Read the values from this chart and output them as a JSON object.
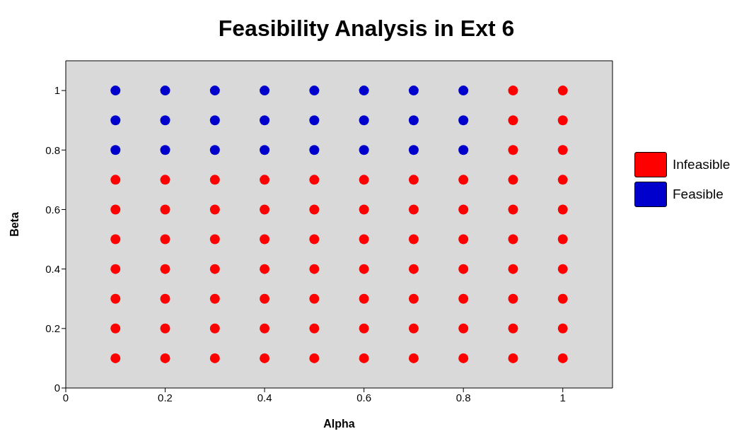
{
  "chart_data": {
    "type": "scatter",
    "title": "Feasibility Analysis in Ext 6",
    "xlabel": "Alpha",
    "ylabel": "Beta",
    "xlim": [
      0,
      1.1
    ],
    "xticks": [
      0,
      0.2,
      0.4,
      0.6,
      0.8,
      1
    ],
    "ylim": [
      0,
      1.1
    ],
    "yticks": [
      0,
      0.2,
      0.4,
      0.6,
      0.8,
      1
    ],
    "legend": "right",
    "marker": "circle",
    "series": [
      {
        "name": "Infeasible",
        "color": "#ff0000",
        "x": [
          0.1,
          0.1,
          0.1,
          0.1,
          0.1,
          0.1,
          0.1,
          0.2,
          0.2,
          0.2,
          0.2,
          0.2,
          0.2,
          0.2,
          0.3,
          0.3,
          0.3,
          0.3,
          0.3,
          0.3,
          0.3,
          0.4,
          0.4,
          0.4,
          0.4,
          0.4,
          0.4,
          0.4,
          0.5,
          0.5,
          0.5,
          0.5,
          0.5,
          0.5,
          0.5,
          0.6,
          0.6,
          0.6,
          0.6,
          0.6,
          0.6,
          0.6,
          0.7,
          0.7,
          0.7,
          0.7,
          0.7,
          0.7,
          0.7,
          0.8,
          0.8,
          0.8,
          0.8,
          0.8,
          0.8,
          0.8,
          0.9,
          0.9,
          0.9,
          0.9,
          0.9,
          0.9,
          0.9,
          0.9,
          0.9,
          0.9,
          1,
          1,
          1,
          1,
          1,
          1,
          1,
          1,
          1,
          1
        ],
        "values": [
          0.1,
          0.2,
          0.3,
          0.4,
          0.5,
          0.6,
          0.7,
          0.1,
          0.2,
          0.3,
          0.4,
          0.5,
          0.6,
          0.7,
          0.1,
          0.2,
          0.3,
          0.4,
          0.5,
          0.6,
          0.7,
          0.1,
          0.2,
          0.3,
          0.4,
          0.5,
          0.6,
          0.7,
          0.1,
          0.2,
          0.3,
          0.4,
          0.5,
          0.6,
          0.7,
          0.1,
          0.2,
          0.3,
          0.4,
          0.5,
          0.6,
          0.7,
          0.1,
          0.2,
          0.3,
          0.4,
          0.5,
          0.6,
          0.7,
          0.1,
          0.2,
          0.3,
          0.4,
          0.5,
          0.6,
          0.7,
          0.1,
          0.2,
          0.3,
          0.4,
          0.5,
          0.6,
          0.7,
          0.8,
          0.9,
          1,
          0.1,
          0.2,
          0.3,
          0.4,
          0.5,
          0.6,
          0.7,
          0.8,
          0.9,
          1
        ]
      },
      {
        "name": "Feasible",
        "color": "#0000cc",
        "x": [
          0.1,
          0.1,
          0.1,
          0.2,
          0.2,
          0.2,
          0.3,
          0.3,
          0.3,
          0.4,
          0.4,
          0.4,
          0.5,
          0.5,
          0.5,
          0.6,
          0.6,
          0.6,
          0.7,
          0.7,
          0.7,
          0.8,
          0.8,
          0.8
        ],
        "values": [
          0.8,
          0.9,
          1,
          0.8,
          0.9,
          1,
          0.8,
          0.9,
          1,
          0.8,
          0.9,
          1,
          0.8,
          0.9,
          1,
          0.8,
          0.9,
          1,
          0.8,
          0.9,
          1,
          0.8,
          0.9,
          1
        ]
      }
    ]
  }
}
